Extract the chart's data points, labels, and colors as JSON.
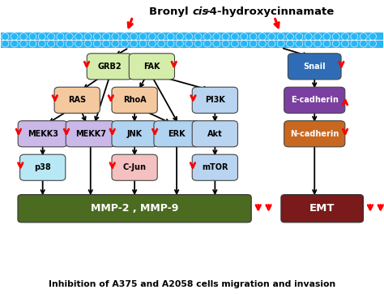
{
  "title": "Bronyl cis-4-hydroxycinnamate",
  "subtitle": "Inhibition of A375 and A2058 cells migration and invasion",
  "bg_color": "#ffffff",
  "membrane_color": "#29b6f6",
  "nodes": {
    "GRB2": {
      "color": "#d4edaa",
      "text_color": "#000000"
    },
    "FAK": {
      "color": "#d4edaa",
      "text_color": "#000000"
    },
    "RAS": {
      "color": "#f5c9a0",
      "text_color": "#000000"
    },
    "RhoA": {
      "color": "#f5c9a0",
      "text_color": "#000000"
    },
    "PI3K": {
      "color": "#b8d4f0",
      "text_color": "#000000"
    },
    "MEKK3": {
      "color": "#c9b8e8",
      "text_color": "#000000"
    },
    "MEKK7": {
      "color": "#c9b8e8",
      "text_color": "#000000"
    },
    "JNK": {
      "color": "#afd3f0",
      "text_color": "#000000"
    },
    "ERK": {
      "color": "#afd3f0",
      "text_color": "#000000"
    },
    "Akt": {
      "color": "#b8d4f0",
      "text_color": "#000000"
    },
    "p38": {
      "color": "#b8e8f5",
      "text_color": "#000000"
    },
    "C-Jun": {
      "color": "#f5c0c0",
      "text_color": "#000000"
    },
    "mTOR": {
      "color": "#b8d4f0",
      "text_color": "#000000"
    },
    "MMP": {
      "color": "#4a6b20",
      "text_color": "#ffffff"
    },
    "Snail": {
      "color": "#2e6db5",
      "text_color": "#ffffff"
    },
    "E-cadherin": {
      "color": "#7b3fa0",
      "text_color": "#ffffff"
    },
    "N-cadherin": {
      "color": "#c86820",
      "text_color": "#ffffff"
    },
    "EMT": {
      "color": "#7a1a1a",
      "text_color": "#ffffff"
    }
  }
}
